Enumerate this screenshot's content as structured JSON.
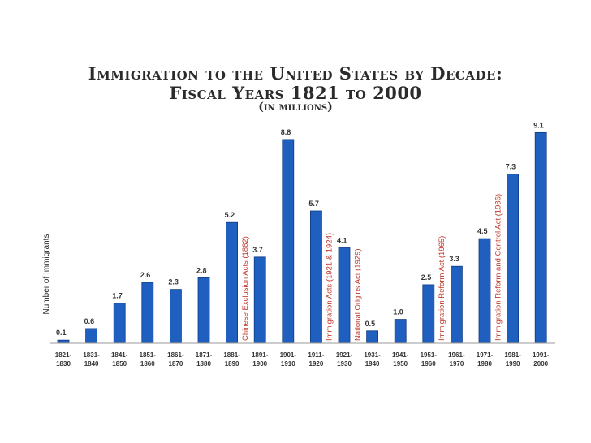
{
  "chart_data": {
    "type": "bar",
    "title_line1": "Immigration to the United States by Decade:",
    "title_line2": "Fiscal Years 1821 to 2000",
    "subtitle": "(in millions)",
    "ylabel": "Number of Immigrants",
    "xlabel": "",
    "ylim": [
      0,
      9.5
    ],
    "grid": false,
    "legend": "none",
    "bar_color": "#1f5fbf",
    "categories": [
      [
        "1821-",
        "1830"
      ],
      [
        "1831-",
        "1840"
      ],
      [
        "1841-",
        "1850"
      ],
      [
        "1851-",
        "1860"
      ],
      [
        "1861-",
        "1870"
      ],
      [
        "1871-",
        "1880"
      ],
      [
        "1881-",
        "1890"
      ],
      [
        "1891-",
        "1900"
      ],
      [
        "1901-",
        "1910"
      ],
      [
        "1911-",
        "1920"
      ],
      [
        "1921-",
        "1930"
      ],
      [
        "1931-",
        "1940"
      ],
      [
        "1941-",
        "1950"
      ],
      [
        "1951-",
        "1960"
      ],
      [
        "1961-",
        "1970"
      ],
      [
        "1971-",
        "1980"
      ],
      [
        "1981-",
        "1990"
      ],
      [
        "1991-",
        "2000"
      ]
    ],
    "values": [
      0.1,
      0.6,
      1.7,
      2.6,
      2.3,
      2.8,
      5.2,
      3.7,
      8.8,
      5.7,
      4.1,
      0.5,
      1.0,
      2.5,
      3.3,
      4.5,
      7.3,
      9.1
    ],
    "value_labels": [
      "0.1",
      "0.6",
      "1.7",
      "2.6",
      "2.3",
      "2.8",
      "5.2",
      "3.7",
      "8.8",
      "5.7",
      "4.1",
      "0.5",
      "1.0",
      "2.5",
      "3.3",
      "4.5",
      "7.3",
      "9.1"
    ],
    "annotations": [
      {
        "text": "Chinese Exclusion Acts (1882)",
        "category_index": 6,
        "color": "#c0392b"
      },
      {
        "text": "Immigration Acts (1921 & 1924)",
        "category_index": 9,
        "color": "#c0392b"
      },
      {
        "text": "National Origins Act (1929)",
        "category_index": 10,
        "color": "#c0392b"
      },
      {
        "text": "Immigration Reform Act  (1965)",
        "category_index": 13,
        "color": "#c0392b"
      },
      {
        "text": "Immigration Reform and Control Act (1986)",
        "category_index": 15,
        "color": "#c0392b"
      }
    ]
  }
}
